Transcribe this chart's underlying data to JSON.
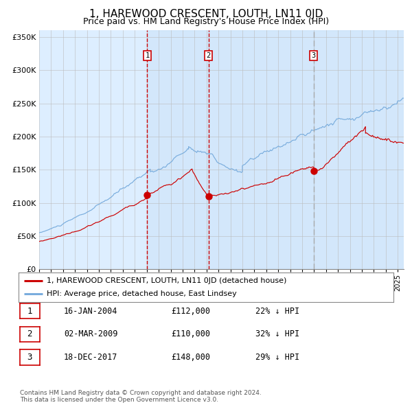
{
  "title": "1, HAREWOOD CRESCENT, LOUTH, LN11 0JD",
  "subtitle": "Price paid vs. HM Land Registry's House Price Index (HPI)",
  "title_fontsize": 11,
  "subtitle_fontsize": 9,
  "ylim": [
    0,
    360000
  ],
  "yticks": [
    0,
    50000,
    100000,
    150000,
    200000,
    250000,
    300000,
    350000
  ],
  "ytick_labels": [
    "£0",
    "£50K",
    "£100K",
    "£150K",
    "£200K",
    "£250K",
    "£300K",
    "£350K"
  ],
  "plot_bg_color": "#ddeeff",
  "grid_color": "#bbbbbb",
  "hpi_color": "#7aaddd",
  "price_color": "#cc0000",
  "sale_marker_color": "#cc0000",
  "vline_color_sale": "#cc0000",
  "vline_color_last": "#aaaaaa",
  "transactions": [
    {
      "label": "1",
      "date_num": 2004.04,
      "price": 112000
    },
    {
      "label": "2",
      "date_num": 2009.17,
      "price": 110000
    },
    {
      "label": "3",
      "date_num": 2017.97,
      "price": 148000
    }
  ],
  "legend_line1": "1, HAREWOOD CRESCENT, LOUTH, LN11 0JD (detached house)",
  "legend_line2": "HPI: Average price, detached house, East Lindsey",
  "table_rows": [
    {
      "num": "1",
      "date": "16-JAN-2004",
      "price": "£112,000",
      "hpi": "22% ↓ HPI"
    },
    {
      "num": "2",
      "date": "02-MAR-2009",
      "price": "£110,000",
      "hpi": "32% ↓ HPI"
    },
    {
      "num": "3",
      "date": "18-DEC-2017",
      "price": "£148,000",
      "hpi": "29% ↓ HPI"
    }
  ],
  "footnote": "Contains HM Land Registry data © Crown copyright and database right 2024.\nThis data is licensed under the Open Government Licence v3.0.",
  "xmin": 1995.0,
  "xmax": 2025.5
}
